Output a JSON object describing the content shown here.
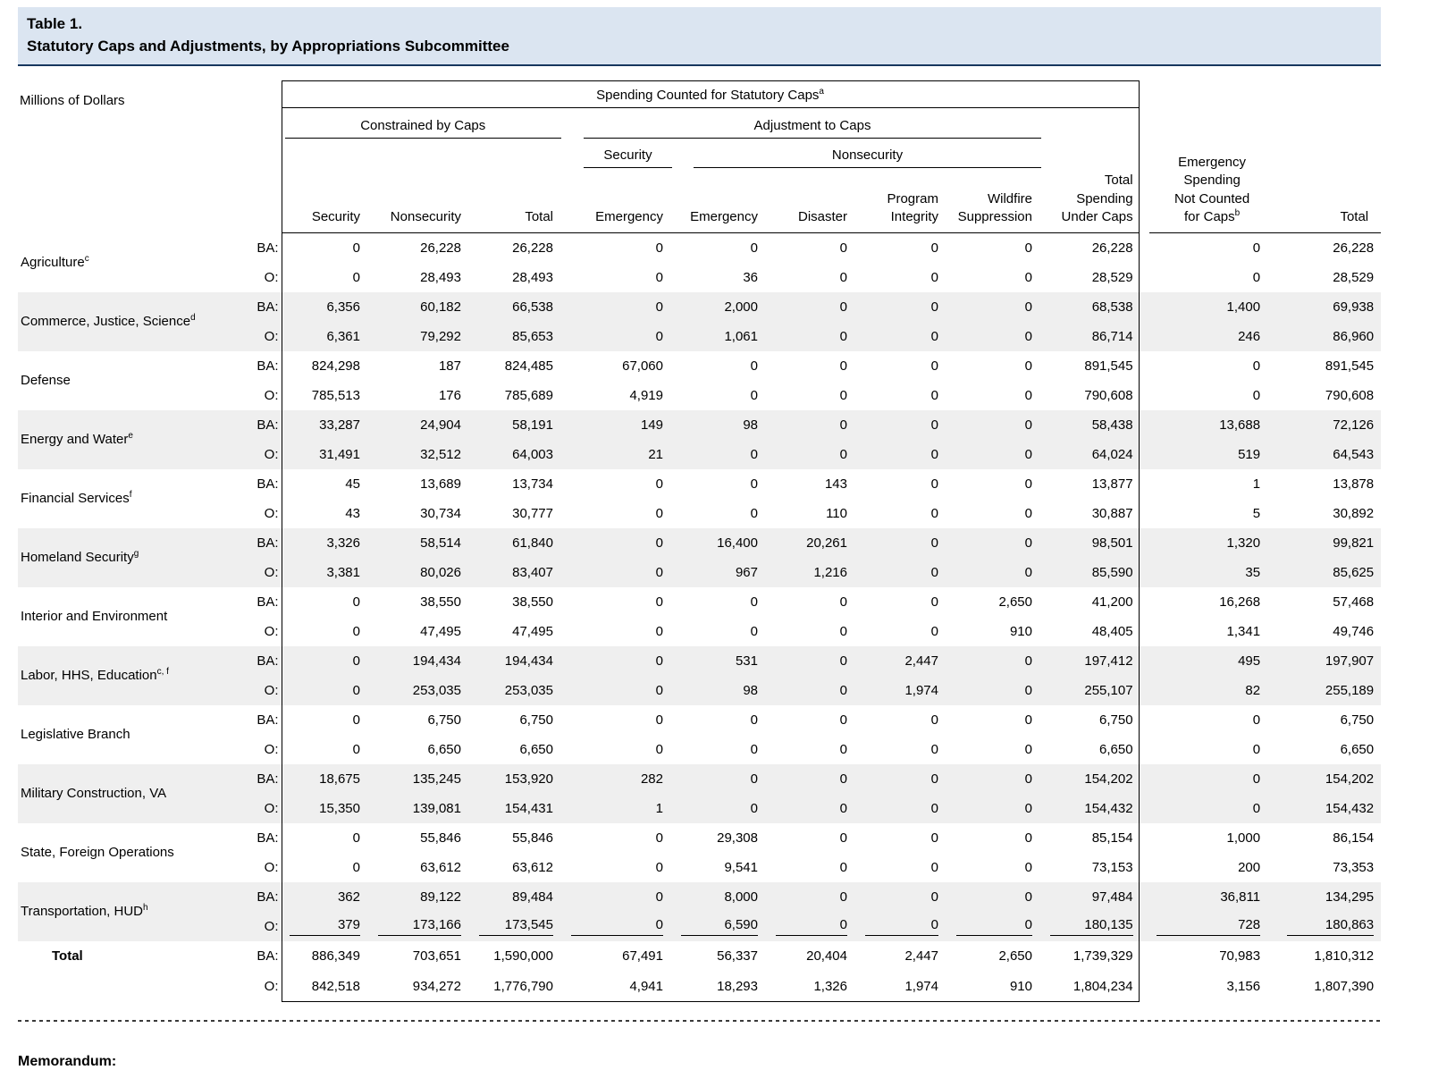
{
  "title": {
    "number": "Table 1.",
    "text": "Statutory Caps and Adjustments, by Appropriations Subcommittee"
  },
  "units_label": "Millions of Dollars",
  "labels": {
    "ba": "BA:",
    "o": "O:"
  },
  "header": {
    "spanning": "Spending Counted for Statutory Caps",
    "spanning_sup": "a",
    "groups": {
      "constrained": "Constrained by Caps",
      "adjustment": "Adjustment to Caps",
      "security": "Security",
      "nonsecurity": "Nonsecurity"
    },
    "columns": [
      "Security",
      "Nonsecurity",
      "Total",
      "Emergency",
      "Emergency",
      "Disaster",
      "Program\nIntegrity",
      "Wildfire\nSuppression",
      "Total\nSpending\nUnder Caps"
    ],
    "outside": {
      "emergency": "Emergency\nSpending\nNot Counted\nfor Caps",
      "emergency_sup": "b",
      "total": "Total"
    }
  },
  "rows": [
    {
      "name": "Agriculture",
      "sup": "c",
      "ba": [
        "0",
        "26,228",
        "26,228",
        "0",
        "0",
        "0",
        "0",
        "0",
        "26,228",
        "0",
        "26,228"
      ],
      "o": [
        "0",
        "28,493",
        "28,493",
        "0",
        "36",
        "0",
        "0",
        "0",
        "28,529",
        "0",
        "28,529"
      ]
    },
    {
      "name": "Commerce, Justice, Science",
      "sup": "d",
      "ba": [
        "6,356",
        "60,182",
        "66,538",
        "0",
        "2,000",
        "0",
        "0",
        "0",
        "68,538",
        "1,400",
        "69,938"
      ],
      "o": [
        "6,361",
        "79,292",
        "85,653",
        "0",
        "1,061",
        "0",
        "0",
        "0",
        "86,714",
        "246",
        "86,960"
      ]
    },
    {
      "name": "Defense",
      "sup": "",
      "ba": [
        "824,298",
        "187",
        "824,485",
        "67,060",
        "0",
        "0",
        "0",
        "0",
        "891,545",
        "0",
        "891,545"
      ],
      "o": [
        "785,513",
        "176",
        "785,689",
        "4,919",
        "0",
        "0",
        "0",
        "0",
        "790,608",
        "0",
        "790,608"
      ]
    },
    {
      "name": "Energy and Water",
      "sup": "e",
      "ba": [
        "33,287",
        "24,904",
        "58,191",
        "149",
        "98",
        "0",
        "0",
        "0",
        "58,438",
        "13,688",
        "72,126"
      ],
      "o": [
        "31,491",
        "32,512",
        "64,003",
        "21",
        "0",
        "0",
        "0",
        "0",
        "64,024",
        "519",
        "64,543"
      ]
    },
    {
      "name": "Financial Services",
      "sup": "f",
      "ba": [
        "45",
        "13,689",
        "13,734",
        "0",
        "0",
        "143",
        "0",
        "0",
        "13,877",
        "1",
        "13,878"
      ],
      "o": [
        "43",
        "30,734",
        "30,777",
        "0",
        "0",
        "110",
        "0",
        "0",
        "30,887",
        "5",
        "30,892"
      ]
    },
    {
      "name": "Homeland Security",
      "sup": "g",
      "ba": [
        "3,326",
        "58,514",
        "61,840",
        "0",
        "16,400",
        "20,261",
        "0",
        "0",
        "98,501",
        "1,320",
        "99,821"
      ],
      "o": [
        "3,381",
        "80,026",
        "83,407",
        "0",
        "967",
        "1,216",
        "0",
        "0",
        "85,590",
        "35",
        "85,625"
      ]
    },
    {
      "name": "Interior and Environment",
      "sup": "",
      "ba": [
        "0",
        "38,550",
        "38,550",
        "0",
        "0",
        "0",
        "0",
        "2,650",
        "41,200",
        "16,268",
        "57,468"
      ],
      "o": [
        "0",
        "47,495",
        "47,495",
        "0",
        "0",
        "0",
        "0",
        "910",
        "48,405",
        "1,341",
        "49,746"
      ]
    },
    {
      "name": "Labor, HHS, Education",
      "sup": "c, f",
      "ba": [
        "0",
        "194,434",
        "194,434",
        "0",
        "531",
        "0",
        "2,447",
        "0",
        "197,412",
        "495",
        "197,907"
      ],
      "o": [
        "0",
        "253,035",
        "253,035",
        "0",
        "98",
        "0",
        "1,974",
        "0",
        "255,107",
        "82",
        "255,189"
      ]
    },
    {
      "name": "Legislative Branch",
      "sup": "",
      "ba": [
        "0",
        "6,750",
        "6,750",
        "0",
        "0",
        "0",
        "0",
        "0",
        "6,750",
        "0",
        "6,750"
      ],
      "o": [
        "0",
        "6,650",
        "6,650",
        "0",
        "0",
        "0",
        "0",
        "0",
        "6,650",
        "0",
        "6,650"
      ]
    },
    {
      "name": "Military Construction, VA",
      "sup": "",
      "ba": [
        "18,675",
        "135,245",
        "153,920",
        "282",
        "0",
        "0",
        "0",
        "0",
        "154,202",
        "0",
        "154,202"
      ],
      "o": [
        "15,350",
        "139,081",
        "154,431",
        "1",
        "0",
        "0",
        "0",
        "0",
        "154,432",
        "0",
        "154,432"
      ]
    },
    {
      "name": "State, Foreign Operations",
      "sup": "",
      "ba": [
        "0",
        "55,846",
        "55,846",
        "0",
        "29,308",
        "0",
        "0",
        "0",
        "85,154",
        "1,000",
        "86,154"
      ],
      "o": [
        "0",
        "63,612",
        "63,612",
        "0",
        "9,541",
        "0",
        "0",
        "0",
        "73,153",
        "200",
        "73,353"
      ]
    },
    {
      "name": "Transportation, HUD",
      "sup": "h",
      "ba": [
        "362",
        "89,122",
        "89,484",
        "0",
        "8,000",
        "0",
        "0",
        "0",
        "97,484",
        "36,811",
        "134,295"
      ],
      "o": [
        "379",
        "173,166",
        "173,545",
        "0",
        "6,590",
        "0",
        "0",
        "0",
        "180,135",
        "728",
        "180,863"
      ]
    }
  ],
  "total": {
    "label": "Total",
    "ba": [
      "886,349",
      "703,651",
      "1,590,000",
      "67,491",
      "56,337",
      "20,404",
      "2,447",
      "2,650",
      "1,739,329",
      "70,983",
      "1,810,312"
    ],
    "o": [
      "842,518",
      "934,272",
      "1,776,790",
      "4,941",
      "18,293",
      "1,326",
      "1,974",
      "910",
      "1,804,234",
      "3,156",
      "1,807,390"
    ]
  },
  "memo_label": "Memorandum:"
}
